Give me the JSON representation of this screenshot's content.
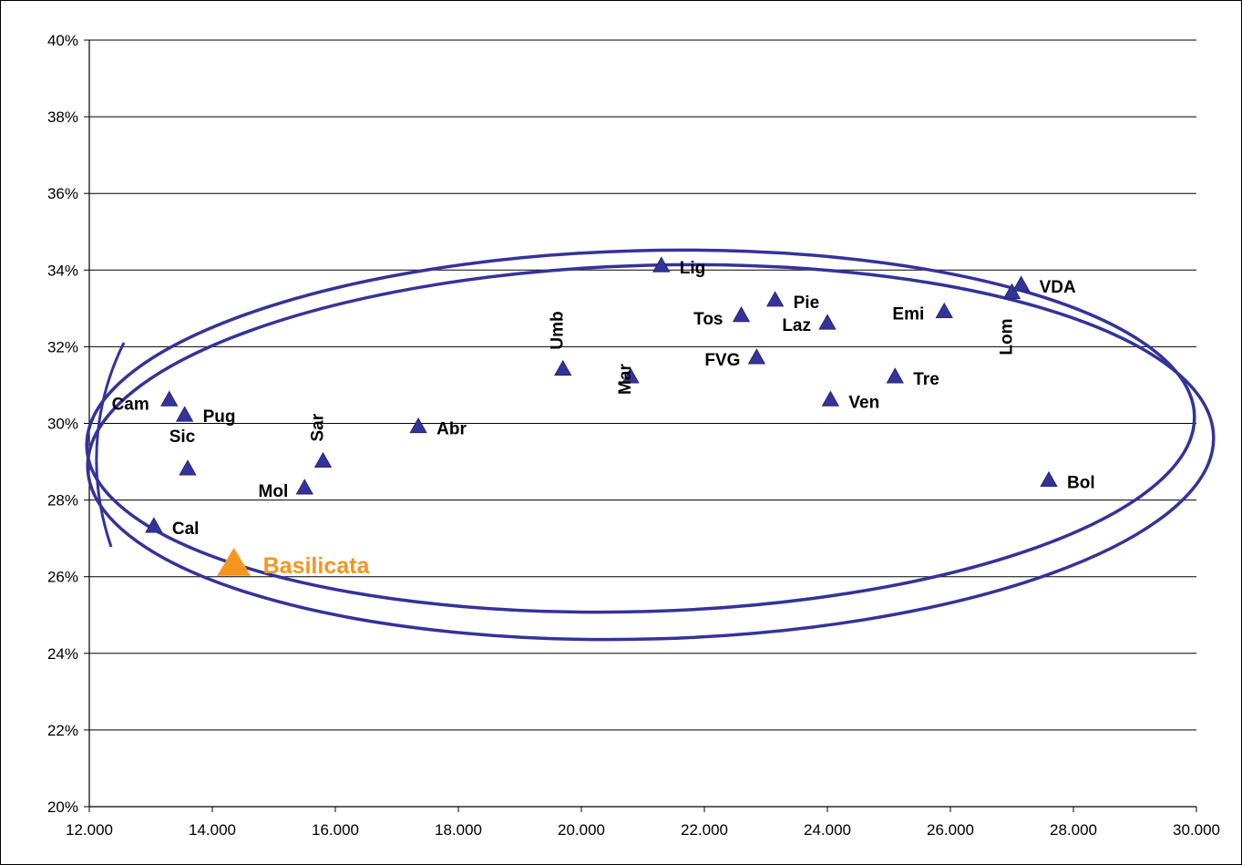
{
  "chart_data": {
    "type": "scatter",
    "title": "",
    "xlabel": "",
    "ylabel": "",
    "xlim": [
      12000,
      30000
    ],
    "ylim": [
      20,
      40
    ],
    "grid": "horizontal",
    "x_ticks": [
      "12.000",
      "14.000",
      "16.000",
      "18.000",
      "20.000",
      "22.000",
      "24.000",
      "26.000",
      "28.000",
      "30.000"
    ],
    "y_ticks": [
      "20%",
      "22%",
      "24%",
      "26%",
      "28%",
      "30%",
      "32%",
      "34%",
      "36%",
      "38%",
      "40%"
    ],
    "colors": {
      "marker": "#33339a",
      "highlight": "#f7941d",
      "ellipse": "#33339a"
    },
    "points": [
      {
        "label": "Cam",
        "x": 13300,
        "y": 30.6
      },
      {
        "label": "Pug",
        "x": 13550,
        "y": 30.2
      },
      {
        "label": "Sic",
        "x": 13600,
        "y": 28.8
      },
      {
        "label": "Cal",
        "x": 13050,
        "y": 27.3
      },
      {
        "label": "Basilicata",
        "x": 14350,
        "y": 26.3,
        "highlight": true
      },
      {
        "label": "Mol",
        "x": 15500,
        "y": 28.3
      },
      {
        "label": "Sar",
        "x": 15800,
        "y": 29.0
      },
      {
        "label": "Abr",
        "x": 17350,
        "y": 29.9
      },
      {
        "label": "Umb",
        "x": 19700,
        "y": 31.4
      },
      {
        "label": "Mar",
        "x": 20800,
        "y": 31.2
      },
      {
        "label": "Lig",
        "x": 21300,
        "y": 34.1
      },
      {
        "label": "Tos",
        "x": 22600,
        "y": 32.8
      },
      {
        "label": "FVG",
        "x": 22850,
        "y": 31.7
      },
      {
        "label": "Pie",
        "x": 23150,
        "y": 33.2
      },
      {
        "label": "Laz",
        "x": 24000,
        "y": 32.6
      },
      {
        "label": "Ven",
        "x": 24050,
        "y": 30.6
      },
      {
        "label": "Tre",
        "x": 25100,
        "y": 31.2
      },
      {
        "label": "Emi",
        "x": 25900,
        "y": 32.9
      },
      {
        "label": "Lom",
        "x": 27000,
        "y": 33.4
      },
      {
        "label": "VDA",
        "x": 27150,
        "y": 33.6
      },
      {
        "label": "Bol",
        "x": 27600,
        "y": 28.5
      }
    ]
  }
}
